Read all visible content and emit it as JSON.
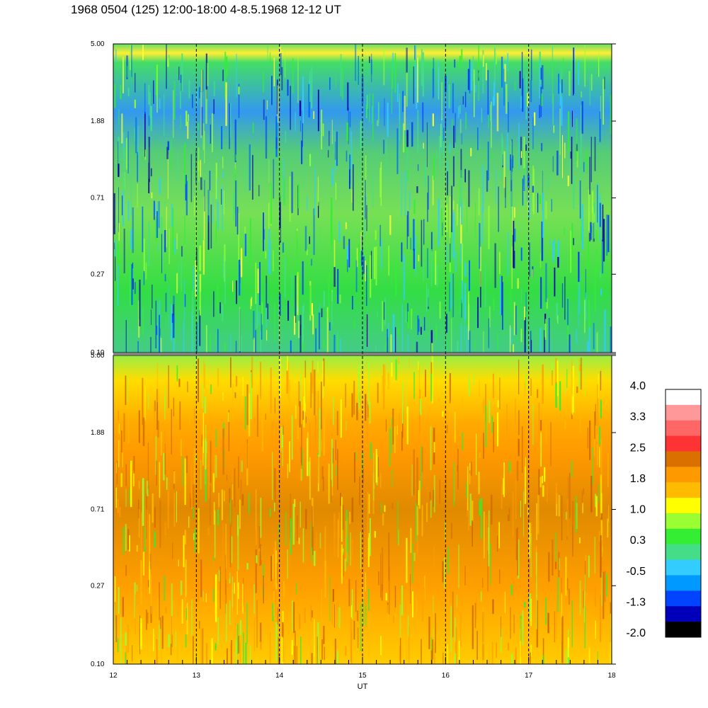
{
  "title": "1968 0504 (125) 12:00-18:00 4-8.5.1968  12-12 UT",
  "chart_data": {
    "type": "heatmap",
    "title": "1968 0504 (125) 12:00-18:00 4-8.5.1968  12-12 UT",
    "xlabel": "UT",
    "xlim": [
      12,
      18
    ],
    "x_ticks": [
      "12",
      "13",
      "14",
      "15",
      "16",
      "17",
      "18"
    ],
    "y_scale": "log",
    "ylim": [
      0.1,
      5.0
    ],
    "y_ticks": [
      "0.10",
      "0.27",
      "0.71",
      "1.88",
      "5.00"
    ],
    "dashed_vertical_lines_at": [
      13,
      14,
      15,
      16,
      17
    ],
    "panels": [
      {
        "name": "upper",
        "dominant_level_range": [
          -1.3,
          1.0
        ],
        "description_levels": "mostly green and light green with blue patches near 1-3, yellow band near 4.3"
      },
      {
        "name": "lower",
        "dominant_level_range": [
          0.6,
          2.2
        ],
        "description_levels": "mostly orange and yellow with darker orange near 0.5-1.5, green band near top"
      }
    ],
    "colorbar": {
      "labels": [
        "4.0",
        "3.3",
        "2.5",
        "1.8",
        "1.0",
        "0.3",
        "-0.5",
        "-1.3",
        "-2.0"
      ],
      "colors": [
        "#ffffff",
        "#ff9999",
        "#ff6666",
        "#ff3333",
        "#d97000",
        "#ff9900",
        "#ffbb00",
        "#ffff00",
        "#99ff33",
        "#33ee33",
        "#44dd88",
        "#33ccff",
        "#0099ff",
        "#0044ff",
        "#0000bb",
        "#000000"
      ]
    }
  }
}
